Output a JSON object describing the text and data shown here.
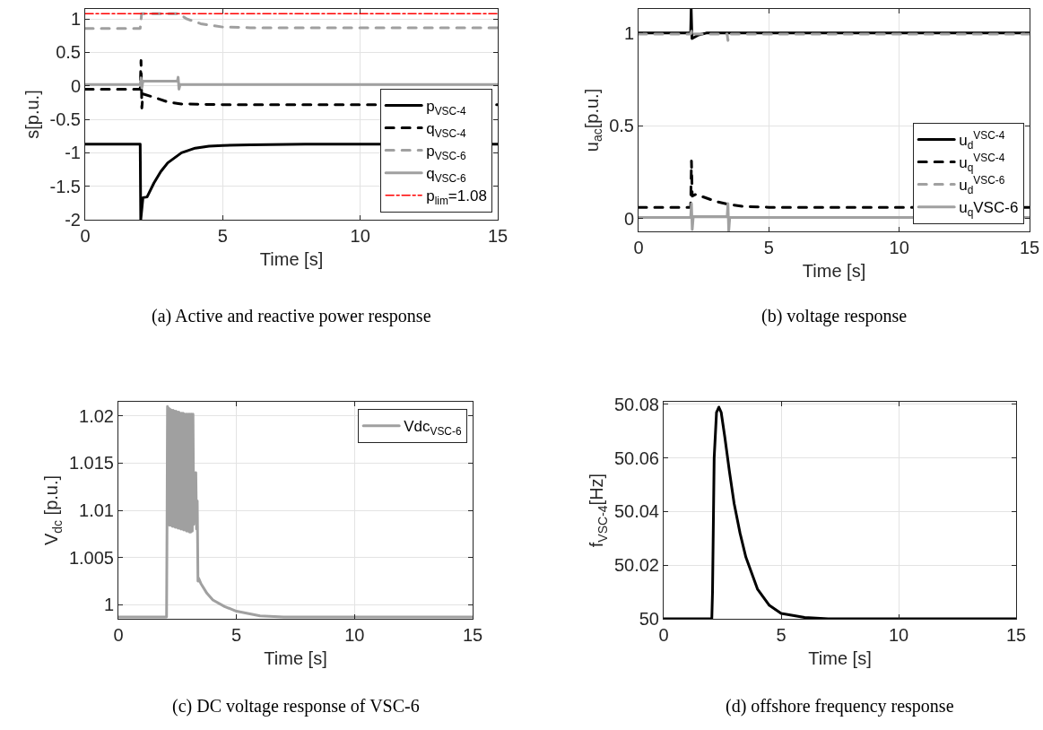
{
  "chart_data": [
    {
      "type": "line",
      "xlabel": "Time [s]",
      "ylabel": "s[p.u.]",
      "xlim": [
        0,
        15
      ],
      "xticks": [
        0,
        5,
        10,
        15
      ],
      "ylim": [
        -2,
        1.15
      ],
      "yticks": [
        -2,
        -1.5,
        -1,
        -0.5,
        0,
        0.5,
        1
      ],
      "grid": true,
      "legend": "bottom right",
      "annotations": [
        "(a) Active and reactive power response"
      ],
      "series": [
        {
          "name": "p$_{VSC-4}$",
          "color": "#000000",
          "line_style": "solid",
          "x": [
            0,
            2.0,
            2.02,
            2.1,
            2.25,
            2.5,
            2.75,
            3,
            3.5,
            4,
            4.5,
            5,
            6,
            8,
            15
          ],
          "values": [
            -0.87,
            -0.87,
            -2.0,
            -1.67,
            -1.66,
            -1.45,
            -1.28,
            -1.15,
            -1.0,
            -0.93,
            -0.9,
            -0.89,
            -0.88,
            -0.87,
            -0.87
          ]
        },
        {
          "name": "q$_{VSC-4}$",
          "color": "#000000",
          "line_style": "dashed",
          "x": [
            0,
            2.0,
            2.03,
            2.06,
            2.1,
            2.5,
            3,
            3.5,
            5,
            15
          ],
          "values": [
            -0.05,
            -0.05,
            0.38,
            -0.33,
            -0.12,
            -0.17,
            -0.24,
            -0.27,
            -0.28,
            -0.28
          ]
        },
        {
          "name": "p$_{VSC-6}$",
          "color": "#a0a0a0",
          "line_style": "dashed",
          "x": [
            0,
            2.0,
            2.05,
            3.4,
            3.7,
            4.2,
            5,
            6,
            15
          ],
          "values": [
            0.86,
            0.86,
            1.08,
            1.08,
            1.0,
            0.93,
            0.88,
            0.87,
            0.87
          ]
        },
        {
          "name": "q$_{VSC-6}$",
          "color": "#a0a0a0",
          "line_style": "solid",
          "x": [
            0,
            2.0,
            2.03,
            2.06,
            2.1,
            3.35,
            3.38,
            3.41,
            3.45,
            15
          ],
          "values": [
            0.02,
            0.02,
            0.12,
            -0.03,
            0.07,
            0.07,
            0.13,
            -0.05,
            0.02,
            0.02
          ]
        }
      ],
      "ref_lines": [
        {
          "axis": "y",
          "value": 1.08,
          "label": "p$_{lim}$=1.08",
          "color": "#ff0000",
          "line_style": "dashdot"
        }
      ]
    },
    {
      "type": "line",
      "xlabel": "Time [s]",
      "ylabel": "u$_{ac}$[p.u.]",
      "xlim": [
        0,
        15
      ],
      "xticks": [
        0,
        5,
        10,
        15
      ],
      "ylim": [
        -0.07,
        1.13
      ],
      "yticks": [
        0,
        0.5,
        1
      ],
      "grid": true,
      "legend": "bottom right",
      "annotations": [
        "(b) voltage response"
      ],
      "series": [
        {
          "name": "u$_{d}$$^{VSC-4}$",
          "color": "#000000",
          "line_style": "solid",
          "x": [
            0,
            2.0,
            2.02,
            2.05,
            2.3,
            2.6,
            15
          ],
          "values": [
            1.0,
            1.0,
            1.13,
            0.97,
            0.99,
            1.0,
            1.0
          ]
        },
        {
          "name": "u$_{q}$$^{VSC-4}$",
          "color": "#000000",
          "line_style": "dashed",
          "x": [
            0,
            2.0,
            2.03,
            2.06,
            2.2,
            2.5,
            3,
            3.5,
            4,
            5,
            15
          ],
          "values": [
            0.06,
            0.06,
            0.31,
            0.12,
            0.13,
            0.115,
            0.09,
            0.075,
            0.065,
            0.06,
            0.06
          ]
        },
        {
          "name": "u$_{d}$$^{VSC-6}$",
          "color": "#a0a0a0",
          "line_style": "dashed",
          "x": [
            0,
            2.0,
            2.03,
            2.06,
            2.1,
            3.4,
            3.43,
            3.46,
            15
          ],
          "values": [
            0.995,
            0.995,
            1.01,
            0.98,
            0.995,
            0.995,
            0.96,
            0.995,
            0.995
          ]
        },
        {
          "name": "u$_{q}$VSC-6",
          "color": "#a0a0a0",
          "line_style": "solid",
          "x": [
            0,
            2.0,
            2.03,
            2.06,
            2.1,
            3.4,
            3.43,
            3.46,
            3.5,
            15
          ],
          "values": [
            0.005,
            0.005,
            0.08,
            -0.06,
            0.01,
            0.01,
            0.08,
            -0.07,
            0.005,
            0.005
          ]
        }
      ]
    },
    {
      "type": "line",
      "xlabel": "Time [s]",
      "ylabel": "V$_{dc}$ [p.u.]",
      "xlim": [
        0,
        15
      ],
      "xticks": [
        0,
        5,
        10,
        15
      ],
      "ylim": [
        0.9985,
        1.0215
      ],
      "yticks": [
        1,
        1.005,
        1.01,
        1.015,
        1.02
      ],
      "grid": true,
      "legend": "top right",
      "annotations": [
        "(c) DC voltage response of VSC-6"
      ],
      "series": [
        {
          "name": "Vdc$_{VSC-6}$",
          "color": "#a0a0a0",
          "line_style": "solid",
          "x": [
            0,
            2.04,
            2.06,
            2.08,
            2.11,
            2.14,
            2.17,
            2.2,
            2.23,
            2.26,
            2.29,
            2.32,
            2.35,
            2.38,
            2.41,
            2.44,
            2.47,
            2.5,
            2.53,
            2.56,
            2.59,
            2.62,
            2.65,
            2.68,
            2.71,
            2.74,
            2.77,
            2.8,
            2.83,
            2.86,
            2.89,
            2.92,
            2.95,
            2.98,
            3.01,
            3.04,
            3.07,
            3.1,
            3.13,
            3.16,
            3.19,
            3.22,
            3.25,
            3.28,
            3.31,
            3.34,
            3.37,
            3.4,
            3.5,
            3.75,
            4,
            4.5,
            5,
            6,
            7,
            15
          ],
          "values": [
            0.9987,
            0.9987,
            1.0085,
            1.021,
            1.0085,
            1.0208,
            1.0084,
            1.0207,
            1.0084,
            1.0206,
            1.0083,
            1.0206,
            1.0083,
            1.0205,
            1.0082,
            1.0205,
            1.0082,
            1.0204,
            1.0081,
            1.0204,
            1.0081,
            1.0203,
            1.008,
            1.0203,
            1.008,
            1.0203,
            1.0079,
            1.0202,
            1.0079,
            1.0202,
            1.0078,
            1.0202,
            1.0078,
            1.0202,
            1.0077,
            1.0202,
            1.0077,
            1.0202,
            1.0078,
            1.0202,
            1.0085,
            1.014,
            1.009,
            1.014,
            1.008,
            1.011,
            1.0025,
            1.0028,
            1.0022,
            1.0012,
            1.0005,
            0.9998,
            0.9993,
            0.9988,
            0.9987,
            0.9987
          ]
        }
      ]
    },
    {
      "type": "line",
      "xlabel": "Time [s]",
      "ylabel": "f$_{VSC-4}$[Hz]",
      "xlim": [
        0,
        15
      ],
      "xticks": [
        0,
        5,
        10,
        15
      ],
      "ylim": [
        50,
        50.081
      ],
      "yticks": [
        50,
        50.02,
        50.04,
        50.06,
        50.08
      ],
      "grid": true,
      "annotations": [
        "(d) offshore frequency response"
      ],
      "series": [
        {
          "color": "#000000",
          "line_style": "solid",
          "x": [
            0,
            2.05,
            2.08,
            2.15,
            2.25,
            2.35,
            2.45,
            2.6,
            2.8,
            3,
            3.25,
            3.5,
            4,
            4.5,
            5,
            6,
            7,
            15
          ],
          "values": [
            50,
            50,
            50.01,
            50.06,
            50.077,
            50.079,
            50.077,
            50.068,
            50.055,
            50.043,
            50.032,
            50.023,
            50.011,
            50.005,
            50.002,
            50.0005,
            50,
            50
          ]
        }
      ]
    }
  ]
}
